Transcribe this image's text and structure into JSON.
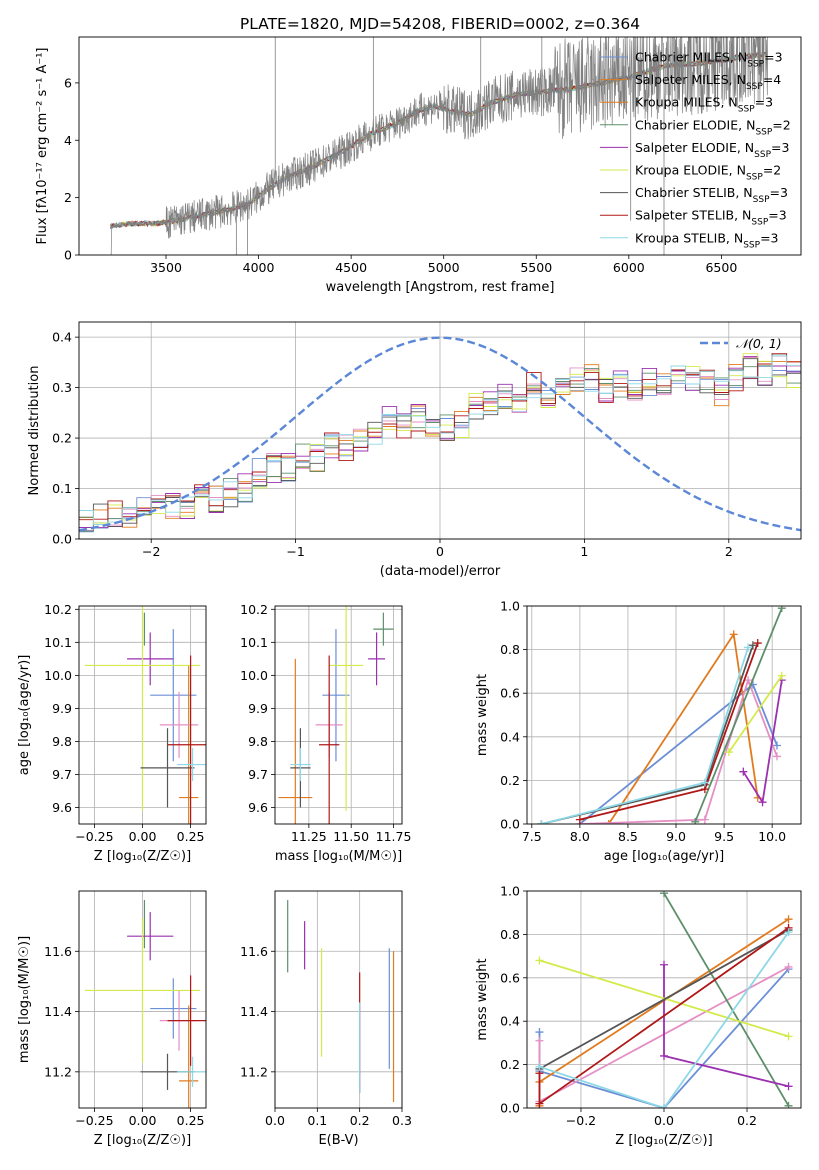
{
  "figure_title": "PLATE=1820, MJD=54208, FIBERID=0002, z=0.364",
  "chart_data": [
    {
      "type": "line",
      "id": "spectrum",
      "xlabel": "wavelength [Angstrom, rest frame]",
      "ylabel": "Flux [f$_\\lambda$10$^{-17}$ erg cm$^{-2}$ s$^{-1}$ A$^{-1}$]",
      "ylabel_text": "Flux [fλ10⁻¹⁷ erg cm⁻² s⁻¹ A⁻¹]",
      "xlim": [
        3030,
        6930
      ],
      "ylim": [
        0,
        7.6
      ],
      "xticks": [
        3500,
        4000,
        4500,
        5000,
        5500,
        6000,
        6500
      ],
      "yticks": [
        0,
        2,
        4,
        6
      ],
      "grid": false,
      "legend_position": "top-right",
      "data_color": "#808080",
      "continuum": {
        "x": [
          3200,
          3300,
          3450,
          3550,
          3700,
          3850,
          3950,
          4050,
          4150,
          4300,
          4450,
          4600,
          4750,
          4850,
          4950,
          5050,
          5150,
          5250,
          5400,
          5550,
          5700,
          5850,
          6000,
          6200,
          6400,
          6600,
          6750
        ],
        "y": [
          1.0,
          1.1,
          1.1,
          1.2,
          1.4,
          1.6,
          1.8,
          2.3,
          2.7,
          3.1,
          3.6,
          4.2,
          4.6,
          5.0,
          5.2,
          5.0,
          4.9,
          5.3,
          5.6,
          5.7,
          5.8,
          6.0,
          6.2,
          6.6,
          6.7,
          6.9,
          7.0
        ]
      },
      "series": [
        {
          "name": "Chabrier MILES, N$_{SSP}$=3",
          "label_main": "Chabrier MILES, N",
          "label_sub": "SSP",
          "label_tail": "=3",
          "color": "#6b8fd6"
        },
        {
          "name": "Salpeter MILES, N$_{SSP}$=4",
          "label_main": "Salpeter MILES, N",
          "label_sub": "SSP",
          "label_tail": "=4",
          "color": "#e07b1f"
        },
        {
          "name": "Kroupa MILES, N$_{SSP}$=3",
          "label_main": "Kroupa MILES, N",
          "label_sub": "SSP",
          "label_tail": "=3",
          "color": "#e07b1f"
        },
        {
          "name": "Chabrier ELODIE, N$_{SSP}$=2",
          "label_main": "Chabrier ELODIE, N",
          "label_sub": "SSP",
          "label_tail": "=2",
          "color": "#5e8f6b"
        },
        {
          "name": "Salpeter ELODIE, N$_{SSP}$=3",
          "label_main": "Salpeter ELODIE, N",
          "label_sub": "SSP",
          "label_tail": "=3",
          "color": "#9b30b0"
        },
        {
          "name": "Kroupa ELODIE, N$_{SSP}$=2",
          "label_main": "Kroupa ELODIE, N",
          "label_sub": "SSP",
          "label_tail": "=2",
          "color": "#d4ea4c"
        },
        {
          "name": "Chabrier STELIB, N$_{SSP}$=3",
          "label_main": "Chabrier STELIB, N",
          "label_sub": "SSP",
          "label_tail": "=3",
          "color": "#555555"
        },
        {
          "name": "Salpeter STELIB, N$_{SSP}$=3",
          "label_main": "Salpeter STELIB, N",
          "label_sub": "SSP",
          "label_tail": "=3",
          "color": "#b01818"
        },
        {
          "name": "Kroupa STELIB, N$_{SSP}$=3",
          "label_main": "Kroupa STELIB, N",
          "label_sub": "SSP",
          "label_tail": "=3",
          "color": "#8dd8e6"
        }
      ]
    },
    {
      "type": "bar",
      "id": "residuals",
      "xlabel": "(data-model)/error",
      "ylabel": "Normed distribution",
      "xlim": [
        -2.5,
        2.5
      ],
      "ylim": [
        0,
        0.43
      ],
      "xticks": [
        -2,
        -1,
        0,
        1,
        2
      ],
      "yticks": [
        0.0,
        0.1,
        0.2,
        0.3,
        0.4
      ],
      "grid": true,
      "legend_position": "top-right",
      "reference_curve": {
        "name": "$\\mathcal{N}(0,1)$",
        "label": "𝒩(0, 1)",
        "color": "#5b87d6"
      },
      "bin_width": 0.1,
      "bin_start": -2.5,
      "reference_hist": [
        0.03,
        0.04,
        0.05,
        0.05,
        0.06,
        0.06,
        0.07,
        0.07,
        0.08,
        0.08,
        0.09,
        0.1,
        0.13,
        0.14,
        0.14,
        0.16,
        0.16,
        0.19,
        0.18,
        0.2,
        0.21,
        0.24,
        0.23,
        0.24,
        0.22,
        0.22,
        0.23,
        0.26,
        0.27,
        0.28,
        0.28,
        0.31,
        0.29,
        0.3,
        0.31,
        0.32,
        0.3,
        0.31,
        0.3,
        0.31,
        0.3,
        0.33,
        0.32,
        0.31,
        0.29,
        0.32,
        0.34,
        0.33,
        0.35,
        0.33,
        0.31,
        0.36,
        0.33,
        0.34,
        0.3,
        0.35,
        0.32,
        0.29,
        0.31,
        0.3,
        0.3,
        0.29,
        0.28,
        0.27,
        0.26,
        0.25,
        0.24,
        0.24,
        0.22,
        0.21,
        0.2,
        0.19,
        0.18,
        0.16,
        0.15,
        0.15,
        0.14,
        0.13,
        0.12,
        0.11,
        0.12,
        0.1,
        0.09,
        0.08,
        0.08,
        0.07,
        0.08,
        0.07,
        0.06,
        0.06
      ],
      "series_colors": [
        "#6b8fd6",
        "#e07b1f",
        "#e58fc4",
        "#5e8f6b",
        "#9b30b0",
        "#d4ea4c",
        "#555555",
        "#b01818",
        "#8dd8e6"
      ]
    },
    {
      "type": "scatter",
      "id": "age-vs-Z",
      "xlabel": "Z [log$_{10}(Z/Z_\\odot)$]",
      "xlabel_text": "Z [log₁₀(Z/Z☉)]",
      "ylabel": "age  [log$_{10}(age/yr)$]",
      "ylabel_text": "age  [log₁₀(age/yr)]",
      "xlim": [
        -0.33,
        0.33
      ],
      "ylim": [
        9.55,
        10.21
      ],
      "xticks": [
        -0.25,
        0.0,
        0.25
      ],
      "xtick_labels": [
        "−0.25",
        "0.00",
        "0.25"
      ],
      "yticks": [
        9.6,
        9.7,
        9.8,
        9.9,
        10.0,
        10.1,
        10.2
      ],
      "grid": true,
      "points": [
        {
          "color": "#6b8fd6",
          "x": 0.16,
          "xerr": 0.12,
          "y": 9.94,
          "yerr": 0.2
        },
        {
          "color": "#e07b1f",
          "x": 0.24,
          "xerr": 0.05,
          "y": 9.63,
          "yerr": 0.4
        },
        {
          "color": "#e58fc4",
          "x": 0.19,
          "xerr": 0.1,
          "y": 9.85,
          "yerr": 0.1
        },
        {
          "color": "#5e8f6b",
          "x": 0.01,
          "xerr": 0.0,
          "y": 10.14,
          "yerr": 0.05
        },
        {
          "color": "#9b30b0",
          "x": 0.04,
          "xerr": 0.12,
          "y": 10.05,
          "yerr": 0.08
        },
        {
          "color": "#d4ea4c",
          "x": 0.0,
          "xerr": 0.3,
          "y": 10.03,
          "yerr": 0.44
        },
        {
          "color": "#555555",
          "x": 0.13,
          "xerr": 0.14,
          "y": 9.72,
          "yerr": 0.12
        },
        {
          "color": "#b01818",
          "x": 0.25,
          "xerr": 0.12,
          "y": 9.79,
          "yerr": 0.27
        },
        {
          "color": "#8dd8e6",
          "x": 0.26,
          "xerr": 0.08,
          "y": 9.73,
          "yerr": 0.05
        }
      ]
    },
    {
      "type": "scatter",
      "id": "age-vs-mass",
      "xlabel": "mass [log$_{10}(M/M_\\odot)$]",
      "xlabel_text": "mass [log₁₀(M/M☉)]",
      "xlim": [
        11.05,
        11.8
      ],
      "ylim": [
        9.55,
        10.21
      ],
      "xticks": [
        11.25,
        11.5,
        11.75
      ],
      "xtick_labels": [
        "11.25",
        "11.50",
        "11.75"
      ],
      "yticks": [
        9.6,
        9.7,
        9.8,
        9.9,
        10.0,
        10.1,
        10.2
      ],
      "grid": true,
      "points": [
        {
          "color": "#6b8fd6",
          "x": 11.41,
          "xerr": 0.08,
          "y": 9.94,
          "yerr": 0.2
        },
        {
          "color": "#e07b1f",
          "x": 11.17,
          "xerr": 0.1,
          "y": 9.63,
          "yerr": 0.42
        },
        {
          "color": "#e58fc4",
          "x": 11.37,
          "xerr": 0.08,
          "y": 9.85,
          "yerr": 0.1
        },
        {
          "color": "#5e8f6b",
          "x": 11.69,
          "xerr": 0.06,
          "y": 10.14,
          "yerr": 0.05
        },
        {
          "color": "#9b30b0",
          "x": 11.65,
          "xerr": 0.05,
          "y": 10.05,
          "yerr": 0.08
        },
        {
          "color": "#d4ea4c",
          "x": 11.47,
          "xerr": 0.1,
          "y": 10.03,
          "yerr": 0.44
        },
        {
          "color": "#555555",
          "x": 11.2,
          "xerr": 0.06,
          "y": 9.72,
          "yerr": 0.12
        },
        {
          "color": "#b01818",
          "x": 11.37,
          "xerr": 0.06,
          "y": 9.79,
          "yerr": 0.27
        },
        {
          "color": "#8dd8e6",
          "x": 11.2,
          "xerr": 0.06,
          "y": 9.73,
          "yerr": 0.05
        }
      ]
    },
    {
      "type": "line",
      "id": "weight-vs-age",
      "xlabel": "age  [log$_{10}(age/yr)$]",
      "xlabel_text": "age  [log₁₀(age/yr)]",
      "ylabel": "mass weight",
      "xlim": [
        7.45,
        10.3
      ],
      "ylim": [
        0,
        1.0
      ],
      "xticks": [
        7.5,
        8.0,
        8.5,
        9.0,
        9.5,
        10.0
      ],
      "yticks": [
        0.0,
        0.2,
        0.4,
        0.6,
        0.8,
        1.0
      ],
      "grid": true,
      "series": [
        {
          "color": "#6b8fd6",
          "x": [
            8.0,
            9.8,
            10.05
          ],
          "y": [
            0.0,
            0.64,
            0.36
          ]
        },
        {
          "color": "#e07b1f",
          "x": [
            8.3,
            9.6,
            9.85
          ],
          "y": [
            0.0,
            0.87,
            0.12
          ]
        },
        {
          "color": "#e58fc4",
          "x": [
            8.0,
            9.3,
            9.75,
            10.05
          ],
          "y": [
            0.0,
            0.02,
            0.66,
            0.31
          ]
        },
        {
          "color": "#5e8f6b",
          "x": [
            9.2,
            10.1
          ],
          "y": [
            0.01,
            0.99
          ]
        },
        {
          "color": "#9b30b0",
          "x": [
            9.7,
            9.9,
            10.1
          ],
          "y": [
            0.24,
            0.1,
            0.66
          ]
        },
        {
          "color": "#d4ea4c",
          "x": [
            9.55,
            10.1
          ],
          "y": [
            0.33,
            0.68
          ]
        },
        {
          "color": "#555555",
          "x": [
            7.6,
            9.3,
            9.8
          ],
          "y": [
            0.0,
            0.18,
            0.82
          ]
        },
        {
          "color": "#b01818",
          "x": [
            8.0,
            9.3,
            9.85
          ],
          "y": [
            0.02,
            0.16,
            0.83
          ]
        },
        {
          "color": "#8dd8e6",
          "x": [
            7.6,
            9.3,
            9.75
          ],
          "y": [
            0.0,
            0.19,
            0.81
          ]
        }
      ]
    },
    {
      "type": "scatter",
      "id": "mass-vs-Z",
      "xlabel": "Z [log$_{10}(Z/Z_\\odot)$]",
      "xlabel_text": "Z [log₁₀(Z/Z☉)]",
      "ylabel": "mass [log$_{10}(M/M_\\odot)$]",
      "ylabel_text": "mass [log₁₀(M/M☉)]",
      "xlim": [
        -0.33,
        0.33
      ],
      "ylim": [
        11.08,
        11.8
      ],
      "xticks": [
        -0.25,
        0.0,
        0.25
      ],
      "xtick_labels": [
        "−0.25",
        "0.00",
        "0.25"
      ],
      "yticks": [
        11.2,
        11.4,
        11.6
      ],
      "grid": true,
      "points": [
        {
          "color": "#6b8fd6",
          "x": 0.16,
          "xerr": 0.12,
          "y": 11.41,
          "yerr": 0.1
        },
        {
          "color": "#e07b1f",
          "x": 0.24,
          "xerr": 0.05,
          "y": 11.17,
          "yerr": 0.25
        },
        {
          "color": "#e58fc4",
          "x": 0.19,
          "xerr": 0.1,
          "y": 11.37,
          "yerr": 0.1
        },
        {
          "color": "#5e8f6b",
          "x": 0.01,
          "xerr": 0.0,
          "y": 11.69,
          "yerr": 0.08
        },
        {
          "color": "#9b30b0",
          "x": 0.04,
          "xerr": 0.12,
          "y": 11.65,
          "yerr": 0.08
        },
        {
          "color": "#d4ea4c",
          "x": 0.0,
          "xerr": 0.3,
          "y": 11.47,
          "yerr": 0.24
        },
        {
          "color": "#555555",
          "x": 0.13,
          "xerr": 0.14,
          "y": 11.2,
          "yerr": 0.06
        },
        {
          "color": "#b01818",
          "x": 0.25,
          "xerr": 0.12,
          "y": 11.37,
          "yerr": 0.15
        },
        {
          "color": "#8dd8e6",
          "x": 0.26,
          "xerr": 0.08,
          "y": 11.2,
          "yerr": 0.05
        }
      ]
    },
    {
      "type": "scatter",
      "id": "mass-vs-EBV",
      "xlabel": "E(B-V)",
      "xlim": [
        0.0,
        0.3
      ],
      "ylim": [
        11.08,
        11.8
      ],
      "xticks": [
        0.0,
        0.1,
        0.2,
        0.3
      ],
      "xtick_labels": [
        "0.0",
        "0.1",
        "0.2",
        "0.3"
      ],
      "yticks": [
        11.2,
        11.4,
        11.6
      ],
      "grid": true,
      "points": [
        {
          "color": "#5e8f6b",
          "x": 0.03,
          "y": 11.65,
          "yerr": 0.12
        },
        {
          "color": "#9b30b0",
          "x": 0.07,
          "y": 11.62,
          "yerr": 0.08
        },
        {
          "color": "#d4ea4c",
          "x": 0.11,
          "y": 11.43,
          "yerr": 0.18
        },
        {
          "color": "#b01818",
          "x": 0.2,
          "y": 11.33,
          "yerr": 0.2
        },
        {
          "color": "#8dd8e6",
          "x": 0.2,
          "y": 11.28,
          "yerr": 0.15
        },
        {
          "color": "#6b8fd6",
          "x": 0.27,
          "y": 11.41,
          "yerr": 0.2
        },
        {
          "color": "#e07b1f",
          "x": 0.28,
          "y": 11.35,
          "yerr": 0.25
        }
      ]
    },
    {
      "type": "line",
      "id": "weight-vs-Z",
      "xlabel": "Z [log$_{10}(Z/Z_\\odot)$]",
      "xlabel_text": "Z [log₁₀(Z/Z☉)]",
      "ylabel": "mass weight",
      "xlim": [
        -0.33,
        0.33
      ],
      "ylim": [
        0,
        1.0
      ],
      "xticks": [
        -0.2,
        0.0,
        0.2
      ],
      "xtick_labels": [
        "−0.2",
        "0.0",
        "0.2"
      ],
      "yticks": [
        0.0,
        0.2,
        0.4,
        0.6,
        0.8,
        1.0
      ],
      "grid": true,
      "series": [
        {
          "color": "#6b8fd6",
          "x": [
            -0.3,
            -0.3,
            0.0,
            0.3
          ],
          "y": [
            0.35,
            0.17,
            0.0,
            0.64
          ]
        },
        {
          "color": "#e07b1f",
          "x": [
            -0.3,
            -0.3,
            0.3
          ],
          "y": [
            0.01,
            0.12,
            0.87
          ]
        },
        {
          "color": "#e58fc4",
          "x": [
            -0.3,
            -0.3,
            0.3
          ],
          "y": [
            0.31,
            0.03,
            0.65
          ]
        },
        {
          "color": "#5e8f6b",
          "x": [
            0.0,
            0.3
          ],
          "y": [
            0.99,
            0.01
          ]
        },
        {
          "color": "#9b30b0",
          "x": [
            0.0,
            0.0,
            0.3
          ],
          "y": [
            0.66,
            0.24,
            0.1
          ]
        },
        {
          "color": "#d4ea4c",
          "x": [
            -0.3,
            0.3
          ],
          "y": [
            0.68,
            0.33
          ]
        },
        {
          "color": "#555555",
          "x": [
            -0.3,
            0.3
          ],
          "y": [
            0.18,
            0.82
          ]
        },
        {
          "color": "#b01818",
          "x": [
            -0.3,
            -0.3,
            0.3
          ],
          "y": [
            0.16,
            0.02,
            0.83
          ]
        },
        {
          "color": "#8dd8e6",
          "x": [
            -0.3,
            0.0,
            0.3
          ],
          "y": [
            0.19,
            0.0,
            0.81
          ]
        }
      ]
    }
  ]
}
